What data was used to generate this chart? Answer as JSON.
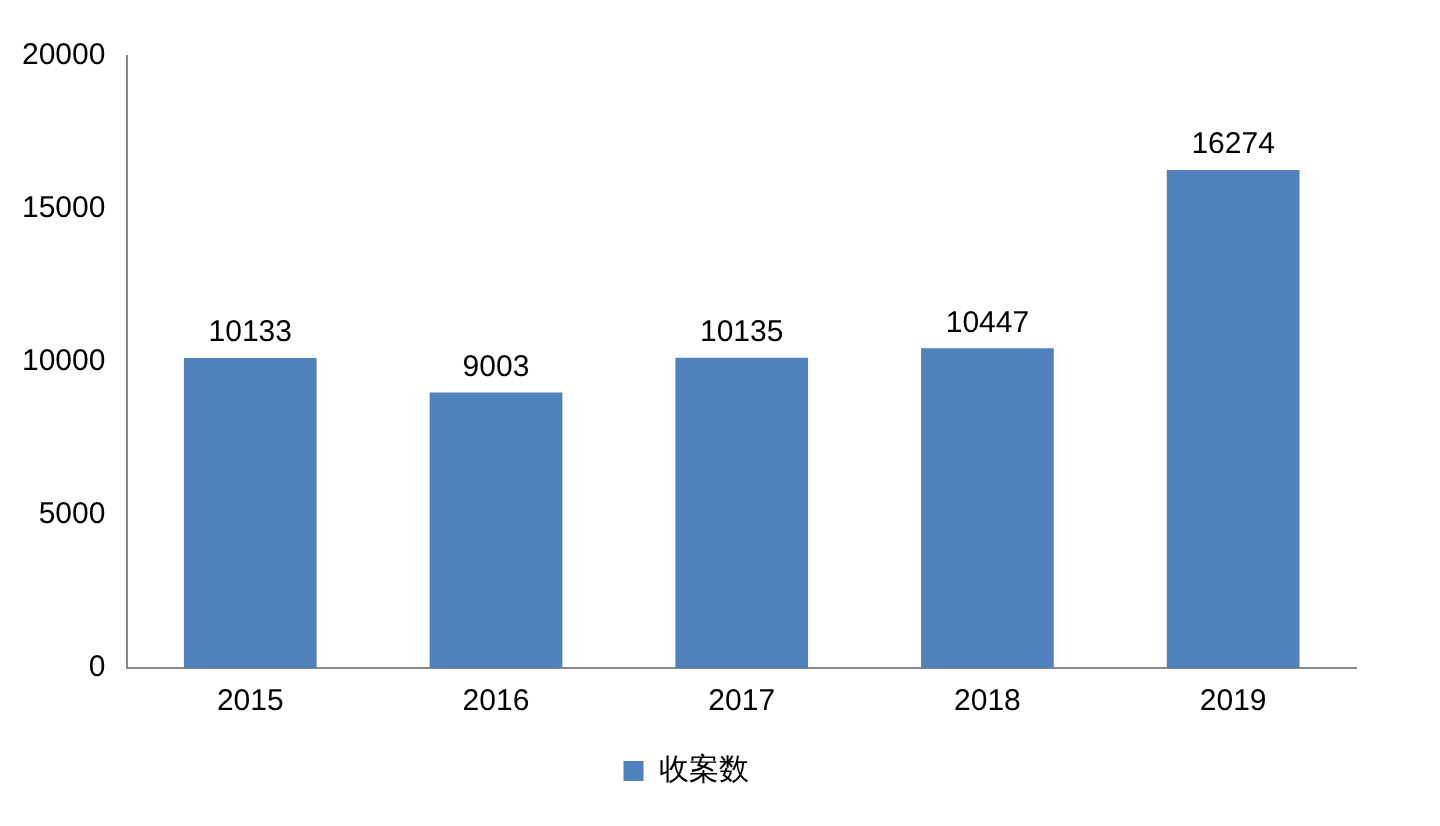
{
  "chart_data": {
    "type": "bar",
    "categories": [
      "2015",
      "2016",
      "2017",
      "2018",
      "2019"
    ],
    "series": [
      {
        "name": "收案数",
        "color": "#4f81bd",
        "values": [
          10133,
          9003,
          10135,
          10447,
          16274
        ]
      }
    ],
    "ylim": [
      0,
      20000
    ],
    "yticks": [
      0,
      5000,
      10000,
      15000,
      20000
    ],
    "data_labels": true,
    "legend": "bottom"
  }
}
